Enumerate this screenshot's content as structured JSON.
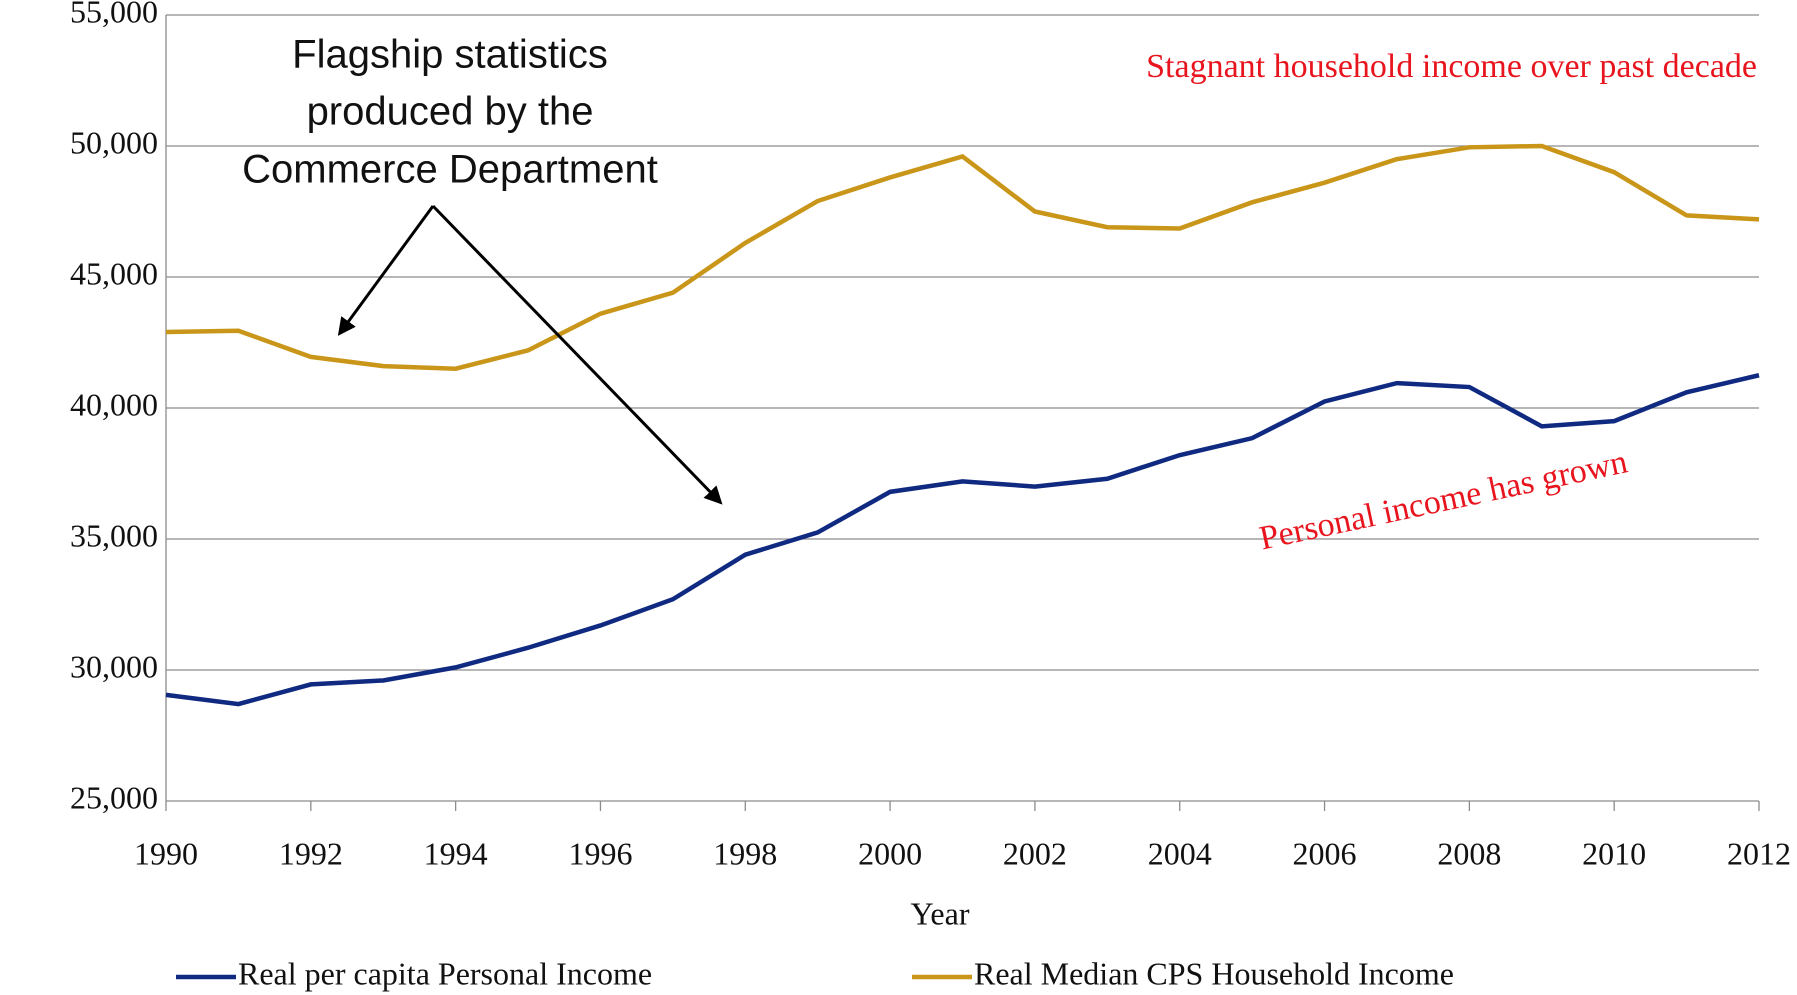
{
  "chart_data": {
    "type": "line",
    "x": [
      1990,
      1991,
      1992,
      1993,
      1994,
      1995,
      1996,
      1997,
      1998,
      1999,
      2000,
      2001,
      2002,
      2003,
      2004,
      2005,
      2006,
      2007,
      2008,
      2009,
      2010,
      2011,
      2012
    ],
    "series": [
      {
        "name": "Real per capita Personal Income",
        "color": "#0f2a80",
        "values": [
          29050,
          28700,
          29450,
          29600,
          30100,
          30850,
          31700,
          32700,
          34400,
          35250,
          36800,
          37200,
          37000,
          37300,
          38200,
          38850,
          40250,
          40950,
          40800,
          39300,
          39500,
          40600,
          41250
        ]
      },
      {
        "name": "Real Median CPS Household Income",
        "color": "#c9961a",
        "values": [
          42900,
          42950,
          41950,
          41600,
          41500,
          42200,
          43600,
          44400,
          46300,
          47900,
          48800,
          49600,
          47500,
          46900,
          46850,
          47850,
          48600,
          49500,
          49950,
          50000,
          49000,
          47350,
          47200
        ]
      }
    ],
    "xlim": [
      1990,
      2012
    ],
    "xticks": [
      1990,
      1992,
      1994,
      1996,
      1998,
      2000,
      2002,
      2004,
      2006,
      2008,
      2010,
      2012
    ],
    "ylim": [
      25000,
      55000
    ],
    "yticks": [
      {
        "value": 25000,
        "label": "25,000"
      },
      {
        "value": 30000,
        "label": "30,000"
      },
      {
        "value": 35000,
        "label": "35,000"
      },
      {
        "value": 40000,
        "label": "40,000"
      },
      {
        "value": 45000,
        "label": "45,000"
      },
      {
        "value": 50000,
        "label": "50,000"
      },
      {
        "value": 55000,
        "label": "55,000"
      }
    ],
    "grid": true,
    "xlabel": "Year",
    "annotations": [
      {
        "lines": [
          "Flagship statistics",
          "produced by the",
          "Commerce Department"
        ]
      },
      {
        "text": "Stagnant household income over past decade"
      },
      {
        "text": "Personal income has grown"
      }
    ]
  }
}
